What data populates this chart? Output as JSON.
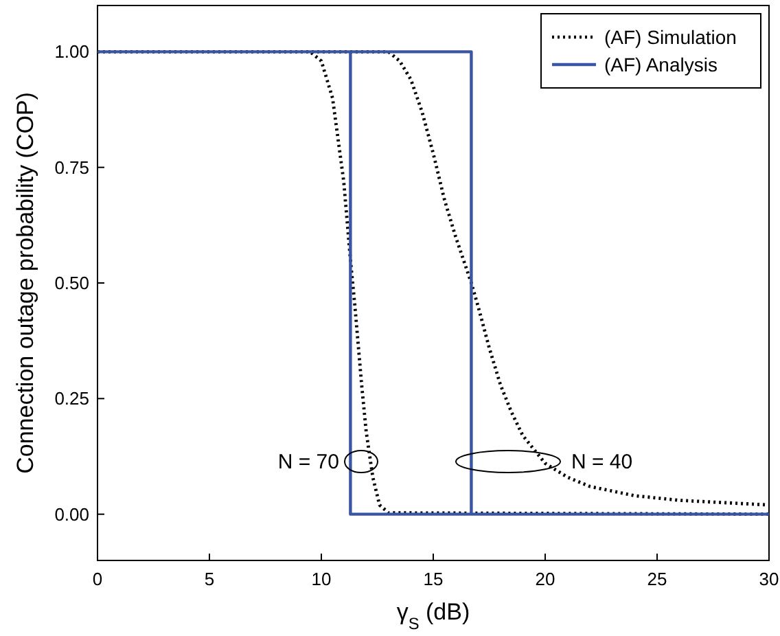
{
  "chart_data": {
    "type": "line",
    "xlabel": "γ$_{S}$ (dB)",
    "ylabel": "Connection outage probability (COP)",
    "xlim": [
      0,
      30
    ],
    "xticks": [
      0,
      5,
      10,
      15,
      20,
      25,
      30
    ],
    "ylim": [
      -0.1,
      1.1
    ],
    "yticks": [
      {
        "value": 0,
        "label": "0.00"
      },
      {
        "value": 0.25,
        "label": "0.25"
      },
      {
        "value": 0.5,
        "label": "0.50"
      },
      {
        "value": 0.75,
        "label": "0.75"
      },
      {
        "value": 1,
        "label": "1.00"
      }
    ],
    "legend": "top right",
    "grid": false,
    "series": [
      {
        "name": "(AF) Simulation",
        "color": "#000000",
        "line_style": "dotted",
        "x": [
          0,
          9.5,
          10,
          10.5,
          11,
          11.3,
          11.5,
          11.8,
          12,
          12.3,
          12.6,
          13,
          30,
          null,
          0,
          13,
          13.5,
          14,
          14.5,
          15,
          15.5,
          16,
          16.7,
          17,
          17.5,
          18,
          18.5,
          19,
          20,
          21,
          22,
          24,
          26,
          28,
          30
        ],
        "values": [
          1,
          1,
          0.98,
          0.9,
          0.72,
          0.55,
          0.45,
          0.28,
          0.18,
          0.08,
          0.02,
          0.003,
          0,
          null,
          1,
          1,
          0.98,
          0.94,
          0.87,
          0.78,
          0.68,
          0.6,
          0.5,
          0.45,
          0.36,
          0.28,
          0.22,
          0.17,
          0.11,
          0.08,
          0.06,
          0.04,
          0.03,
          0.025,
          0.02
        ]
      },
      {
        "name": "(AF) Analysis",
        "color": "#3a55a4",
        "line_style": "solid",
        "x": [
          0,
          11.3,
          11.3,
          30,
          null,
          0,
          16.7,
          16.7,
          30
        ],
        "values": [
          1,
          1,
          0,
          0,
          null,
          1,
          1,
          0,
          0
        ]
      }
    ],
    "annotations": [
      "N = 70",
      "N = 40"
    ]
  }
}
